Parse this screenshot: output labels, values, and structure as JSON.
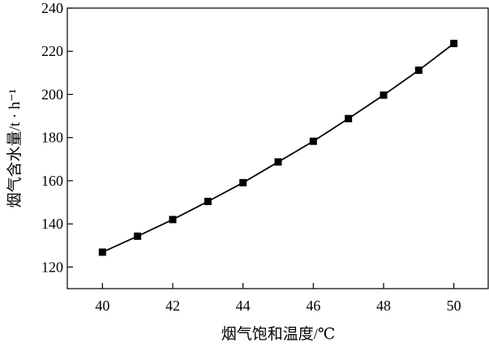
{
  "chart_data": {
    "type": "line",
    "title": "",
    "xlabel": "烟气饱和温度/℃",
    "ylabel": "烟气含水量/t · h⁻¹",
    "xlim": [
      39,
      51
    ],
    "ylim": [
      110,
      240
    ],
    "x_ticks": [
      "40",
      "42",
      "44",
      "46",
      "48",
      "50"
    ],
    "y_ticks": [
      "120",
      "140",
      "160",
      "180",
      "200",
      "220",
      "240"
    ],
    "grid": false,
    "legend": "none",
    "marker": "square",
    "line_color": "#000000",
    "series": [
      {
        "x": [
          40,
          41,
          42,
          43,
          44,
          45,
          46,
          47,
          48,
          49,
          50
        ],
        "values": [
          126.9,
          134.3,
          142.0,
          150.4,
          159.1,
          168.7,
          178.3,
          188.8,
          199.7,
          211.2,
          223.6
        ]
      }
    ]
  }
}
